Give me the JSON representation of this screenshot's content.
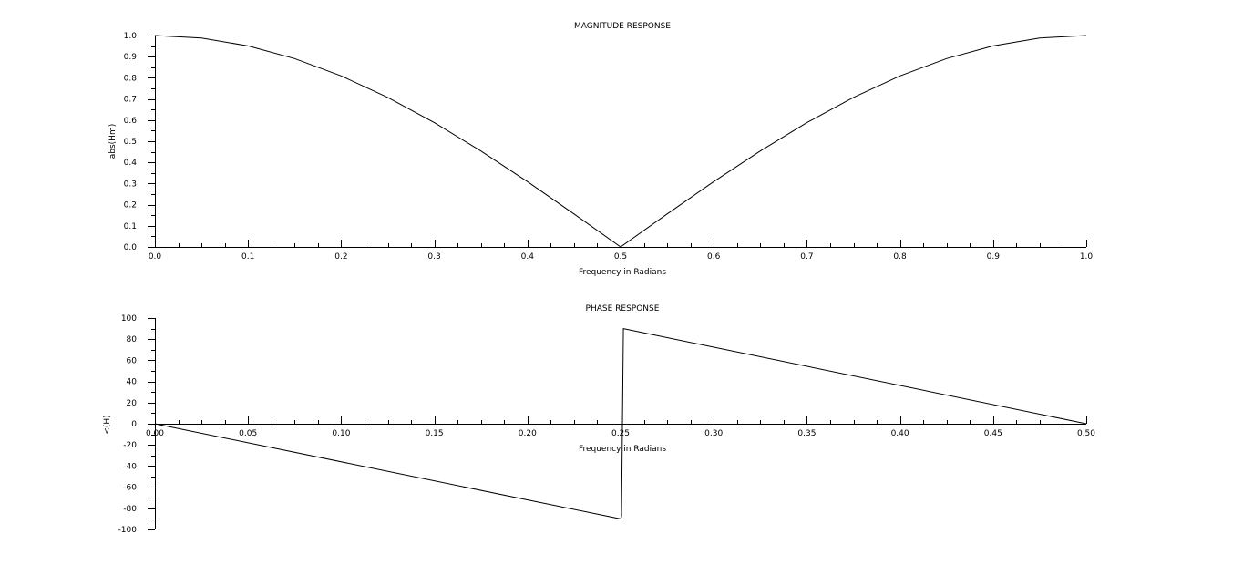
{
  "chart_data": [
    {
      "type": "line",
      "title": "MAGNITUDE RESPONSE",
      "xlabel": "Frequency in Radians",
      "ylabel": "abs(Hm)",
      "xlim": [
        0,
        1
      ],
      "ylim": [
        0,
        1
      ],
      "xticks": [
        0.0,
        0.1,
        0.2,
        0.3,
        0.4,
        0.5,
        0.6,
        0.7,
        0.8,
        0.9,
        1.0
      ],
      "xtick_labels": [
        "0.0",
        "0.1",
        "0.2",
        "0.3",
        "0.4",
        "0.5",
        "0.6",
        "0.7",
        "0.8",
        "0.9",
        "1.0"
      ],
      "yticks": [
        0.0,
        0.1,
        0.2,
        0.3,
        0.4,
        0.5,
        0.6,
        0.7,
        0.8,
        0.9,
        1.0
      ],
      "ytick_labels": [
        "0.0",
        "0.1",
        "0.2",
        "0.3",
        "0.4",
        "0.5",
        "0.6",
        "0.7",
        "0.8",
        "0.9",
        "1.0"
      ],
      "grid": false,
      "series": [
        {
          "x": [
            0.0,
            0.05,
            0.1,
            0.15,
            0.2,
            0.25,
            0.3,
            0.35,
            0.4,
            0.45,
            0.5,
            0.55,
            0.6,
            0.65,
            0.7,
            0.75,
            0.8,
            0.85,
            0.9,
            0.95,
            1.0
          ],
          "y": [
            1.0,
            0.988,
            0.951,
            0.891,
            0.809,
            0.707,
            0.588,
            0.454,
            0.309,
            0.156,
            0.0,
            0.156,
            0.309,
            0.454,
            0.588,
            0.707,
            0.809,
            0.891,
            0.951,
            0.988,
            1.0
          ]
        }
      ]
    },
    {
      "type": "line",
      "title": "PHASE RESPONSE",
      "xlabel": "Frequency in Radians",
      "ylabel": "<(H)",
      "xlim": [
        0,
        0.5
      ],
      "ylim": [
        -100,
        100
      ],
      "xticks": [
        0.0,
        0.05,
        0.1,
        0.15,
        0.2,
        0.25,
        0.3,
        0.35,
        0.4,
        0.45,
        0.5
      ],
      "xtick_labels": [
        "0.00",
        "0.05",
        "0.10",
        "0.15",
        "0.20",
        "0.25",
        "0.30",
        "0.35",
        "0.40",
        "0.45",
        "0.50"
      ],
      "yticks": [
        -100,
        -80,
        -60,
        -40,
        -20,
        0,
        20,
        40,
        60,
        80,
        100
      ],
      "ytick_labels": [
        "-100",
        "-80",
        "-60",
        "-40",
        "-20",
        "0",
        "20",
        "40",
        "60",
        "80",
        "100"
      ],
      "grid": false,
      "series": [
        {
          "x": [
            0.0,
            0.25,
            0.2505,
            0.2515,
            0.5
          ],
          "y": [
            0,
            -90,
            -88,
            90,
            0
          ]
        }
      ]
    }
  ]
}
